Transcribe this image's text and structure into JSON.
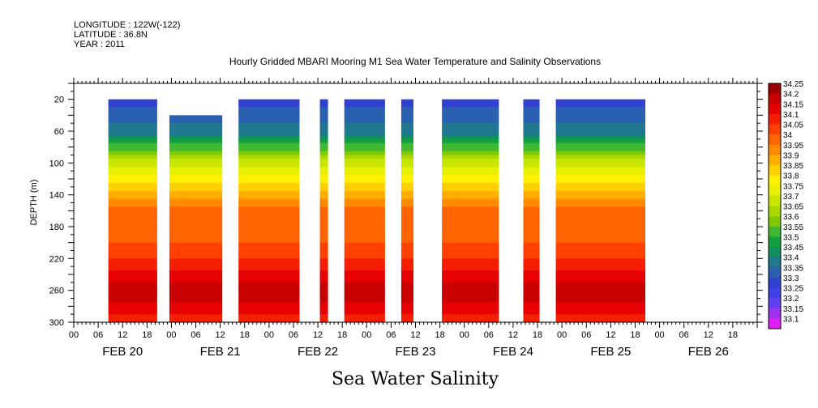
{
  "header": {
    "lines": [
      "LONGITUDE : 122W(-122)",
      "LATITUDE : 36.8N",
      "YEAR : 2011"
    ],
    "title": "Hourly Gridded MBARI Mooring M1 Sea Water Temperature and Salinity Observations"
  },
  "chart_data": {
    "type": "heatmap",
    "title": "Hourly Gridded MBARI Mooring M1 Sea Water Temperature and Salinity Observations",
    "xlabel": "Sea Water Salinity",
    "ylabel": "DEPTH (m)",
    "y_range": [
      300,
      0
    ],
    "y_ticks": [
      20,
      60,
      100,
      140,
      180,
      220,
      260,
      300
    ],
    "x_range_hours": [
      0,
      168
    ],
    "x_hour_labels": [
      "00",
      "06",
      "12",
      "18",
      "00",
      "06",
      "12",
      "18",
      "00",
      "06",
      "12",
      "18",
      "00",
      "06",
      "12",
      "18",
      "00",
      "06",
      "12",
      "18",
      "00",
      "06",
      "12",
      "18",
      "00",
      "06",
      "12",
      "18"
    ],
    "x_date_labels": [
      "FEB 20",
      "FEB 21",
      "FEB 22",
      "FEB 23",
      "FEB 24",
      "FEB 25",
      "FEB 26"
    ],
    "colorbar_levels": [
      "34.25",
      "34.2",
      "34.15",
      "34.1",
      "34.05",
      "34",
      "33.95",
      "33.9",
      "33.85",
      "33.8",
      "33.75",
      "33.7",
      "33.65",
      "33.6",
      "33.55",
      "33.5",
      "33.45",
      "33.4",
      "33.35",
      "33.3",
      "33.25",
      "33.2",
      "33.15",
      "33.1"
    ],
    "colorbar_colors": [
      "#9b0000",
      "#c80000",
      "#e60000",
      "#f51e00",
      "#ff4000",
      "#ff6400",
      "#ff8a00",
      "#ffae00",
      "#ffd000",
      "#fff000",
      "#e6f000",
      "#c8e600",
      "#a8d800",
      "#80c800",
      "#40b830",
      "#10a040",
      "#109060",
      "#207890",
      "#2a60b0",
      "#3040d0",
      "#4040e8",
      "#6040f0",
      "#a030f0",
      "#e020f0"
    ],
    "data_segments": [
      {
        "start": 8.5,
        "end": 20.5,
        "top_depth": 20
      },
      {
        "start": 23.5,
        "end": 36.5,
        "top_depth": 40
      },
      {
        "start": 40.5,
        "end": 55.5,
        "top_depth": 20
      },
      {
        "start": 60.5,
        "end": 62.5,
        "top_depth": 20
      },
      {
        "start": 66.5,
        "end": 76.5,
        "top_depth": 20
      },
      {
        "start": 80.5,
        "end": 83.5,
        "top_depth": 20
      },
      {
        "start": 90.5,
        "end": 104.5,
        "top_depth": 20
      },
      {
        "start": 110.5,
        "end": 114.5,
        "top_depth": 20
      },
      {
        "start": 118.5,
        "end": 140.5,
        "top_depth": 20
      }
    ],
    "profile": [
      {
        "depth": 20,
        "salinity": 33.33
      },
      {
        "depth": 60,
        "salinity": 33.42
      },
      {
        "depth": 80,
        "salinity": 33.58
      },
      {
        "depth": 100,
        "salinity": 33.72
      },
      {
        "depth": 120,
        "salinity": 33.83
      },
      {
        "depth": 140,
        "salinity": 33.93
      },
      {
        "depth": 160,
        "salinity": 34.02
      },
      {
        "depth": 200,
        "salinity": 34.05
      },
      {
        "depth": 230,
        "salinity": 34.12
      },
      {
        "depth": 250,
        "salinity": 34.2
      },
      {
        "depth": 260,
        "salinity": 34.24
      },
      {
        "depth": 280,
        "salinity": 34.18
      },
      {
        "depth": 300,
        "salinity": 34.12
      }
    ]
  }
}
